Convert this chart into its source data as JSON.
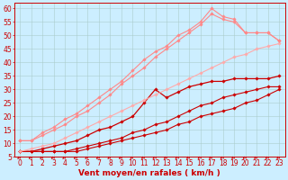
{
  "bg_color": "#cceeff",
  "grid_color": "#aacccc",
  "xlabel": "Vent moyen/en rafales ( km/h )",
  "xlabel_color": "#cc0000",
  "xlabel_fontsize": 6.5,
  "tick_fontsize": 5.5,
  "xlim": [
    -0.5,
    23.5
  ],
  "ylim": [
    5,
    62
  ],
  "yticks": [
    5,
    10,
    15,
    20,
    25,
    30,
    35,
    40,
    45,
    50,
    55,
    60
  ],
  "xticks": [
    0,
    1,
    2,
    3,
    4,
    5,
    6,
    7,
    8,
    9,
    10,
    11,
    12,
    13,
    14,
    15,
    16,
    17,
    18,
    19,
    20,
    21,
    22,
    23
  ],
  "series": [
    {
      "x": [
        0,
        1,
        2,
        3,
        4,
        5,
        6,
        7,
        8,
        9,
        10,
        11,
        12,
        13,
        14,
        15,
        16,
        17,
        18,
        19,
        20,
        21,
        22,
        23
      ],
      "y": [
        7,
        7,
        7,
        7,
        7,
        7,
        8,
        9,
        10,
        11,
        12,
        13,
        14,
        15,
        17,
        18,
        20,
        21,
        22,
        23,
        25,
        26,
        28,
        30
      ],
      "color": "#cc0000",
      "lw": 0.8,
      "marker": "D",
      "ms": 1.8
    },
    {
      "x": [
        0,
        1,
        2,
        3,
        4,
        5,
        6,
        7,
        8,
        9,
        10,
        11,
        12,
        13,
        14,
        15,
        16,
        17,
        18,
        19,
        20,
        21,
        22,
        23
      ],
      "y": [
        7,
        7,
        7,
        7,
        7,
        8,
        9,
        10,
        11,
        12,
        14,
        15,
        17,
        18,
        20,
        22,
        24,
        25,
        27,
        28,
        29,
        30,
        31,
        31
      ],
      "color": "#cc0000",
      "lw": 0.8,
      "marker": "D",
      "ms": 1.8
    },
    {
      "x": [
        0,
        1,
        2,
        3,
        4,
        5,
        6,
        7,
        8,
        9,
        10,
        11,
        12,
        13,
        14,
        15,
        16,
        17,
        18,
        19,
        20,
        21,
        22,
        23
      ],
      "y": [
        7,
        7,
        8,
        9,
        10,
        11,
        13,
        15,
        16,
        18,
        20,
        25,
        30,
        27,
        29,
        31,
        32,
        33,
        33,
        34,
        34,
        34,
        34,
        35
      ],
      "color": "#cc0000",
      "lw": 0.9,
      "marker": "D",
      "ms": 1.8
    },
    {
      "x": [
        0,
        1,
        2,
        3,
        4,
        5,
        6,
        7,
        8,
        9,
        10,
        11,
        12,
        13,
        14,
        15,
        16,
        17,
        18,
        19,
        20,
        21,
        22,
        23
      ],
      "y": [
        7,
        8,
        9,
        10,
        12,
        14,
        16,
        18,
        20,
        22,
        24,
        26,
        28,
        30,
        32,
        34,
        36,
        38,
        40,
        42,
        43,
        45,
        46,
        47
      ],
      "color": "#ffaaaa",
      "lw": 0.8,
      "marker": "D",
      "ms": 1.8
    },
    {
      "x": [
        0,
        1,
        2,
        3,
        4,
        5,
        6,
        7,
        8,
        9,
        10,
        11,
        12,
        13,
        14,
        15,
        16,
        17,
        18,
        19,
        20,
        21,
        22,
        23
      ],
      "y": [
        11,
        11,
        13,
        15,
        17,
        20,
        22,
        25,
        28,
        32,
        35,
        38,
        42,
        45,
        48,
        51,
        54,
        58,
        56,
        55,
        51,
        51,
        51,
        48
      ],
      "color": "#ff8888",
      "lw": 0.8,
      "marker": "D",
      "ms": 1.8
    },
    {
      "x": [
        0,
        1,
        2,
        3,
        4,
        5,
        6,
        7,
        8,
        9,
        10,
        11,
        12,
        13,
        14,
        15,
        16,
        17,
        18,
        19,
        20,
        21,
        22,
        23
      ],
      "y": [
        11,
        11,
        14,
        16,
        19,
        21,
        24,
        27,
        30,
        33,
        37,
        41,
        44,
        46,
        50,
        52,
        55,
        60,
        57,
        56,
        51,
        51,
        51,
        48
      ],
      "color": "#ff8888",
      "lw": 0.8,
      "marker": "D",
      "ms": 1.8
    }
  ]
}
